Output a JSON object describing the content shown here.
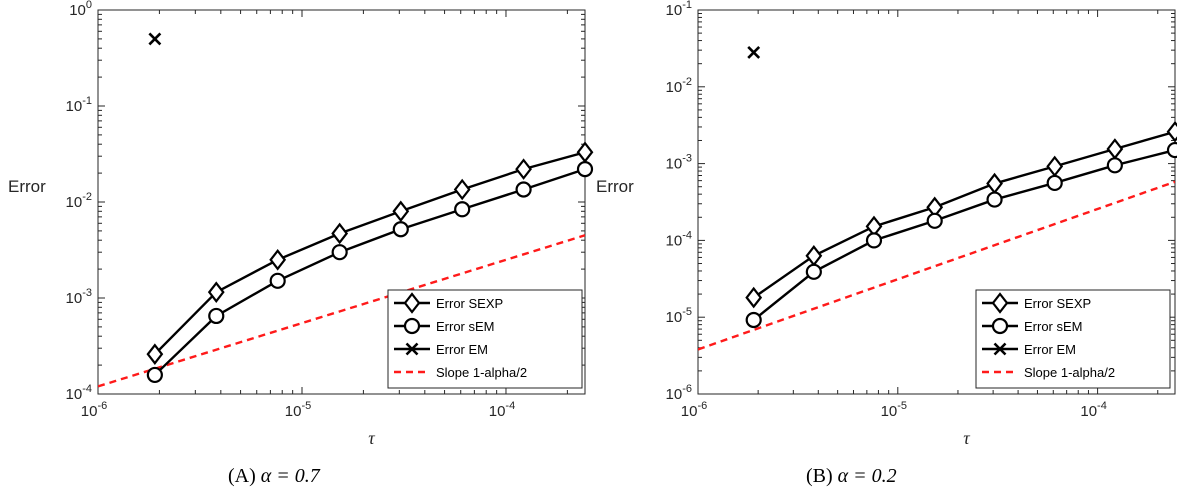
{
  "chart_data": [
    {
      "type": "line",
      "caption": "(A) α = 0.7",
      "caption_prefix": "(A)",
      "caption_math": "α = 0.7",
      "xlabel": "τ",
      "ylabel": "Error",
      "xscale": "log",
      "yscale": "log",
      "xlim": [
        1e-06,
        0.000244
      ],
      "ylim": [
        0.0001,
        1
      ],
      "x_ticks": [
        "10^-6",
        "10^-5",
        "10^-4"
      ],
      "y_ticks": [
        "10^-4",
        "10^-3",
        "10^-2",
        "10^-1",
        "10^0"
      ],
      "grid": false,
      "legend_position": "bottom-right",
      "series": [
        {
          "name": "Error SEXP",
          "marker": "diamond",
          "color": "#000000",
          "x": [
            1.9e-06,
            3.8e-06,
            7.6e-06,
            1.53e-05,
            3.05e-05,
            6.1e-05,
            0.000122,
            0.000244
          ],
          "y": [
            0.00026,
            0.00115,
            0.0025,
            0.0047,
            0.008,
            0.0135,
            0.022,
            0.033
          ]
        },
        {
          "name": "Error sEM",
          "marker": "circle",
          "color": "#000000",
          "x": [
            1.9e-06,
            3.8e-06,
            7.6e-06,
            1.53e-05,
            3.05e-05,
            6.1e-05,
            0.000122,
            0.000244
          ],
          "y": [
            0.000158,
            0.00065,
            0.00151,
            0.003,
            0.0052,
            0.0084,
            0.0135,
            0.022
          ]
        },
        {
          "name": "Error EM",
          "marker": "x",
          "color": "#000000",
          "x": [
            1.9e-06
          ],
          "y": [
            0.5
          ]
        },
        {
          "name": "Slope 1-alpha/2",
          "marker": "none",
          "color": "#ff1a1a",
          "dashed": true,
          "x": [
            1e-06,
            0.000244
          ],
          "y": [
            0.00012,
            0.0045
          ]
        }
      ]
    },
    {
      "type": "line",
      "caption": "(B) α = 0.2",
      "caption_prefix": "(B)",
      "caption_math": "α = 0.2",
      "xlabel": "τ",
      "ylabel": "Error",
      "xscale": "log",
      "yscale": "log",
      "xlim": [
        1e-06,
        0.000244
      ],
      "ylim": [
        1e-06,
        0.1
      ],
      "x_ticks": [
        "10^-6",
        "10^-5",
        "10^-4"
      ],
      "y_ticks": [
        "10^-6",
        "10^-5",
        "10^-4",
        "10^-3",
        "10^-2",
        "10^-1"
      ],
      "grid": false,
      "legend_position": "bottom-right",
      "series": [
        {
          "name": "Error SEXP",
          "marker": "diamond",
          "color": "#000000",
          "x": [
            1.9e-06,
            3.8e-06,
            7.6e-06,
            1.53e-05,
            3.05e-05,
            6.1e-05,
            0.000122,
            0.000244
          ],
          "y": [
            1.8e-05,
            6.3e-05,
            0.000152,
            0.00027,
            0.00055,
            0.00092,
            0.00155,
            0.0026
          ]
        },
        {
          "name": "Error sEM",
          "marker": "circle",
          "color": "#000000",
          "x": [
            1.9e-06,
            3.8e-06,
            7.6e-06,
            1.53e-05,
            3.05e-05,
            6.1e-05,
            0.000122,
            0.000244
          ],
          "y": [
            9.2e-06,
            3.9e-05,
            0.0001,
            0.00018,
            0.00034,
            0.00056,
            0.00095,
            0.0015
          ]
        },
        {
          "name": "Error EM",
          "marker": "x",
          "color": "#000000",
          "x": [
            1.9e-06
          ],
          "y": [
            0.028
          ]
        },
        {
          "name": "Slope 1-alpha/2",
          "marker": "none",
          "color": "#ff1a1a",
          "dashed": true,
          "x": [
            1e-06,
            0.000244
          ],
          "y": [
            3.8e-06,
            0.00058
          ]
        }
      ]
    }
  ]
}
